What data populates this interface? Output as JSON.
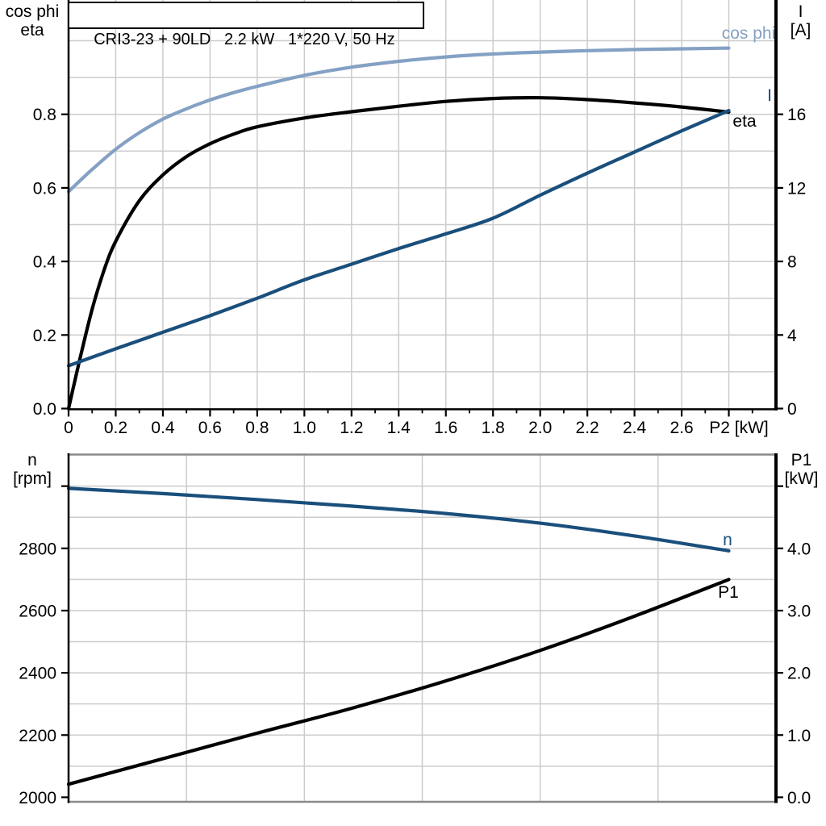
{
  "style": {
    "background": "#ffffff",
    "grid_color": "#cccccc",
    "axis_color": "#000000",
    "border_color": "#8a8a8a",
    "series_colors": {
      "cos_phi": "#84a1c4",
      "eta": "#000000",
      "I": "#1a4f7c",
      "n": "#1a4f7c",
      "P1": "#000000"
    }
  },
  "chart_data": [
    {
      "name": "motor-electrical-curves",
      "type": "line",
      "title": "CRI3-23 + 90LD   2.2 kW   1*220 V, 50 Hz",
      "x_axis": {
        "label": "P2 [kW]",
        "min": 0,
        "max": 3,
        "grid_step": 0.2,
        "major_tick_step": 0.2,
        "minor_tick_step": 0.1,
        "ticks": [
          {
            "v": 0,
            "label": "0"
          },
          {
            "v": 0.2,
            "label": "0.2"
          },
          {
            "v": 0.4,
            "label": "0.4"
          },
          {
            "v": 0.6,
            "label": "0.6"
          },
          {
            "v": 0.8,
            "label": "0.8"
          },
          {
            "v": 1,
            "label": "1.0"
          },
          {
            "v": 1.2,
            "label": "1.2"
          },
          {
            "v": 1.4,
            "label": "1.4"
          },
          {
            "v": 1.6,
            "label": "1.6"
          },
          {
            "v": 1.8,
            "label": "1.8"
          },
          {
            "v": 2,
            "label": "2.0"
          },
          {
            "v": 2.2,
            "label": "2.2"
          },
          {
            "v": 2.4,
            "label": "2.4"
          },
          {
            "v": 2.6,
            "label": "2.6"
          },
          {
            "v": 2.8,
            "label": ""
          }
        ]
      },
      "left_axis": {
        "label_lines": [
          "cos phi",
          "eta"
        ],
        "min": 0,
        "max": 1.1,
        "grid_step": 0.1,
        "ticks": [
          {
            "v": 0,
            "label": "0.0"
          },
          {
            "v": 0.2,
            "label": "0.2"
          },
          {
            "v": 0.4,
            "label": "0.4"
          },
          {
            "v": 0.6,
            "label": "0.6"
          },
          {
            "v": 0.8,
            "label": "0.8"
          }
        ]
      },
      "right_axis": {
        "label_lines": [
          "I",
          "[A]"
        ],
        "min": 0,
        "max": 22,
        "grid_step": 2,
        "ticks": [
          {
            "v": 0,
            "label": "0"
          },
          {
            "v": 4,
            "label": "4"
          },
          {
            "v": 8,
            "label": "8"
          },
          {
            "v": 12,
            "label": "12"
          },
          {
            "v": 16,
            "label": "16"
          }
        ]
      },
      "series": [
        {
          "name": "cos phi",
          "axis": "left",
          "color_key": "cos_phi",
          "x": [
            0,
            0.1,
            0.2,
            0.3,
            0.4,
            0.5,
            0.6,
            0.7,
            0.8,
            1,
            1.2,
            1.4,
            1.6,
            1.8,
            2,
            2.2,
            2.4,
            2.6,
            2.8
          ],
          "y": [
            0.59,
            0.65,
            0.705,
            0.75,
            0.787,
            0.815,
            0.839,
            0.859,
            0.876,
            0.906,
            0.928,
            0.944,
            0.956,
            0.964,
            0.969,
            0.973,
            0.976,
            0.978,
            0.98
          ]
        },
        {
          "name": "eta",
          "axis": "left",
          "color_key": "eta",
          "x": [
            0,
            0.05,
            0.1,
            0.15,
            0.2,
            0.3,
            0.4,
            0.5,
            0.6,
            0.7,
            0.8,
            1,
            1.2,
            1.4,
            1.6,
            1.8,
            2,
            2.2,
            2.4,
            2.6,
            2.8
          ],
          "y": [
            0,
            0.14,
            0.27,
            0.375,
            0.455,
            0.565,
            0.635,
            0.685,
            0.72,
            0.746,
            0.766,
            0.79,
            0.807,
            0.822,
            0.835,
            0.843,
            0.845,
            0.84,
            0.831,
            0.82,
            0.806
          ]
        },
        {
          "name": "I",
          "axis": "right",
          "color_key": "I",
          "x": [
            0,
            0.2,
            0.4,
            0.6,
            0.8,
            1,
            1.2,
            1.4,
            1.6,
            1.8,
            2,
            2.2,
            2.4,
            2.6,
            2.8
          ],
          "y": [
            2.33,
            3.25,
            4.15,
            5.05,
            6.0,
            7.0,
            7.85,
            8.7,
            9.5,
            10.35,
            11.6,
            12.8,
            13.95,
            15.1,
            16.2
          ]
        }
      ]
    },
    {
      "name": "speed-and-input-power-curves",
      "type": "line",
      "x_axis": {
        "min": 0,
        "max": 3,
        "grid_step": 0.5
      },
      "left_axis": {
        "label_lines": [
          "n",
          "[rpm]"
        ],
        "min": 2000,
        "max": 3100,
        "grid_step": 100,
        "grid_from": 2100,
        "grid_to": 3000,
        "ticks": [
          {
            "v": 2000,
            "label": "2000"
          },
          {
            "v": 2200,
            "label": "2200"
          },
          {
            "v": 2400,
            "label": "2400"
          },
          {
            "v": 2600,
            "label": "2600"
          },
          {
            "v": 2800,
            "label": "2800"
          },
          {
            "v": 3000,
            "label": ""
          }
        ]
      },
      "right_axis": {
        "label_lines": [
          "P1",
          "[kW]"
        ],
        "min": 0,
        "max": 5.5,
        "grid_step": 0.5,
        "ticks": [
          {
            "v": 0,
            "label": "0.0"
          },
          {
            "v": 1,
            "label": "1.0"
          },
          {
            "v": 2,
            "label": "2.0"
          },
          {
            "v": 3,
            "label": "3.0"
          },
          {
            "v": 4,
            "label": "4.0"
          },
          {
            "v": 5,
            "label": ""
          }
        ]
      },
      "series": [
        {
          "name": "n",
          "axis": "left",
          "color_key": "n",
          "x": [
            0,
            0.4,
            0.8,
            1.2,
            1.6,
            2,
            2.4,
            2.8
          ],
          "y": [
            2993,
            2976,
            2957,
            2936,
            2912,
            2881,
            2840,
            2792
          ]
        },
        {
          "name": "P1",
          "axis": "right",
          "color_key": "P1",
          "x": [
            0,
            0.4,
            0.8,
            1.2,
            1.6,
            2,
            2.4,
            2.8
          ],
          "y": [
            0.21,
            0.62,
            1.03,
            1.43,
            1.87,
            2.36,
            2.91,
            3.5
          ]
        }
      ]
    }
  ]
}
